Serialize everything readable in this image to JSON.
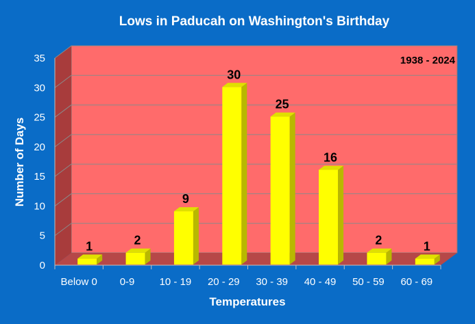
{
  "chart_data": {
    "type": "bar",
    "title": "Lows in Paducah on Washington's Birthday",
    "annotation": "1938 - 2024",
    "xlabel": "Temperatures",
    "ylabel": "Number of Days",
    "categories": [
      "Below 0",
      "0-9",
      "10 - 19",
      "20 - 29",
      "30 - 39",
      "40 - 49",
      "50 - 59",
      "60 - 69"
    ],
    "values": [
      1,
      2,
      9,
      30,
      25,
      16,
      2,
      1
    ],
    "ylim": [
      0,
      35
    ],
    "yticks": [
      0,
      5,
      10,
      15,
      20,
      25,
      30,
      35
    ],
    "grid": true,
    "legend": "none",
    "colors": {
      "background": "#0a6cc7",
      "plot_area": "#ff6b6b",
      "side_wall": "#a83c3c",
      "floor": "#b64848",
      "bar_front": "#ffff00",
      "bar_side": "#b8b800",
      "bar_top": "#e0e000"
    }
  }
}
